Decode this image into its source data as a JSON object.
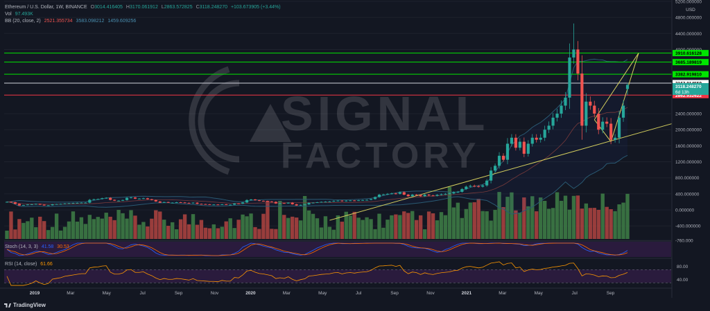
{
  "header": {
    "symbol": "Ethereum / U.S. Dollar, 1W, BINANCE",
    "ohlc": {
      "open_label": "O",
      "open": "3014.416405",
      "high_label": "H",
      "high": "3170.061912",
      "low_label": "L",
      "low": "2863.572825",
      "close_label": "C",
      "close": "3118.248270",
      "change": "+103.673905 (+3.44%)"
    },
    "vol_label": "Vol",
    "vol_value": "97.493K",
    "bb_label": "BB (20, close, 2)",
    "bb_values": [
      "2521.355734",
      "3583.098212",
      "1459.609256"
    ]
  },
  "watermark": {
    "line1": "SIGNAL",
    "line2": "FACTORY"
  },
  "axis": {
    "currency_label": "USD",
    "price_ticks": [
      {
        "value": 5200,
        "label": "5200.000000"
      },
      {
        "value": 4800,
        "label": "4800.000000"
      },
      {
        "value": 4400,
        "label": "4400.000000"
      },
      {
        "value": 4000,
        "label": "4000.000000"
      },
      {
        "value": 2400,
        "label": "2400.000000"
      },
      {
        "value": 2000,
        "label": "2000.000000"
      },
      {
        "value": 1600,
        "label": "1600.000000"
      },
      {
        "value": 1200,
        "label": "1200.000000"
      },
      {
        "value": 800,
        "label": "800.000000"
      },
      {
        "value": 400,
        "label": "400.000000"
      },
      {
        "value": 0,
        "label": "0.000000"
      },
      {
        "value": -400,
        "label": "-400.000000"
      },
      {
        "value": -760,
        "label": "-760.000"
      }
    ],
    "time_labels": [
      "Nov",
      "2019",
      "Mar",
      "May",
      "Jul",
      "Sep",
      "Nov",
      "2020",
      "Mar",
      "May",
      "Jul",
      "Sep",
      "Nov",
      "2021",
      "Mar",
      "May",
      "Jul",
      "Sep"
    ]
  },
  "levels": [
    {
      "price": 3910.616128,
      "label": "3910.616128",
      "color": "#00e600",
      "tag_bg": "#00e600",
      "tag_fg": "#000000"
    },
    {
      "price": 3685.189819,
      "label": "3685.189819",
      "color": "#00e600",
      "tag_bg": "#00e600",
      "tag_fg": "#000000"
    },
    {
      "price": 3382.91981,
      "label": "3382.919810",
      "color": "#00e600",
      "tag_bg": "#00e600",
      "tag_fg": "#000000"
    },
    {
      "price": 3162.014559,
      "label": "3162.014559",
      "color": "#d1d4dc",
      "tag_bg": "#ffffff",
      "tag_fg": "#000000"
    },
    {
      "price": 2862.932622,
      "label": "2862.932622",
      "color": "#f23645",
      "tag_bg": "#f23645",
      "tag_fg": "#ffffff"
    }
  ],
  "current_price": {
    "price": 3118.24827,
    "label": "3118.248270",
    "countdown": "6d 13h",
    "tag_bg": "#26a69a"
  },
  "stoch": {
    "label": "Stoch (14, 3, 3)",
    "k": "41.58",
    "d": "30.53"
  },
  "rsi": {
    "label": "RSI (14, close)",
    "value": "61.66",
    "ticks": [
      {
        "value": 80,
        "label": "80.00"
      },
      {
        "value": 40,
        "label": "40.00"
      }
    ]
  },
  "branding": {
    "name": "TradingView"
  },
  "colors": {
    "up": "#26a69a",
    "down": "#ef5350",
    "vol_up": "#3d7a45",
    "vol_down": "#a8413f",
    "bb": "#2a5a73",
    "bb_basis": "#7a3b3b",
    "trend": "#d4cf5e",
    "stoch_k": "#2962ff",
    "stoch_d": "#ff6d00",
    "rsi": "#ff9800",
    "indicator_bg": "#2a1b3d"
  },
  "chart_data": {
    "type": "candlestick",
    "title": "Ethereum / U.S. Dollar, 1W, BINANCE",
    "ylabel": "USD",
    "ylim": [
      -760,
      5200
    ],
    "weekly_closes": [
      200,
      190,
      150,
      110,
      120,
      135,
      140,
      150,
      130,
      110,
      115,
      140,
      145,
      150,
      160,
      165,
      170,
      175,
      180,
      180,
      250,
      265,
      270,
      290,
      300,
      250,
      230,
      230,
      245,
      300,
      310,
      280,
      280,
      290,
      265,
      245,
      210,
      180,
      195,
      180,
      180,
      190,
      185,
      175,
      165,
      180,
      150,
      145,
      140,
      135,
      135,
      130,
      140,
      130,
      130,
      160,
      155,
      185,
      245,
      260,
      240,
      225,
      220,
      210,
      200,
      160,
      170,
      160,
      180,
      140,
      110,
      125,
      135,
      175,
      180,
      190,
      200,
      205,
      210,
      225,
      230,
      215,
      230,
      235,
      230,
      240,
      245,
      250,
      270,
      320,
      380,
      385,
      400,
      410,
      400,
      440,
      380,
      340,
      380,
      370,
      340,
      380,
      360,
      350,
      375,
      390,
      400,
      410,
      440,
      450,
      520,
      580,
      600,
      590,
      580,
      610,
      730,
      980,
      1100,
      1350,
      1250,
      1650,
      1800,
      1550,
      1700,
      1400,
      1650,
      1800,
      1750,
      1800,
      2000,
      2100,
      2300,
      2400,
      2600,
      2800,
      3800,
      4000,
      3400,
      2100,
      2700,
      2600,
      2400,
      2000,
      2200,
      2150,
      1750,
      1800,
      2300,
      2600,
      3118
    ],
    "volume_scale_note": "relative",
    "levels": [
      3910.616128,
      3685.189819,
      3382.91981,
      3162.014559,
      2862.932622
    ],
    "bollinger": {
      "period": 20,
      "stdev": 2,
      "basis": 2521.355734,
      "upper": 3583.098212,
      "lower": 1459.609256
    },
    "last": {
      "open": 3014.416405,
      "high": 3170.061912,
      "low": 2863.572825,
      "close": 3118.24827,
      "change": 103.673905,
      "change_pct": 3.44
    },
    "stoch": {
      "k": 41.58,
      "d": 30.53
    },
    "rsi": 61.66
  }
}
